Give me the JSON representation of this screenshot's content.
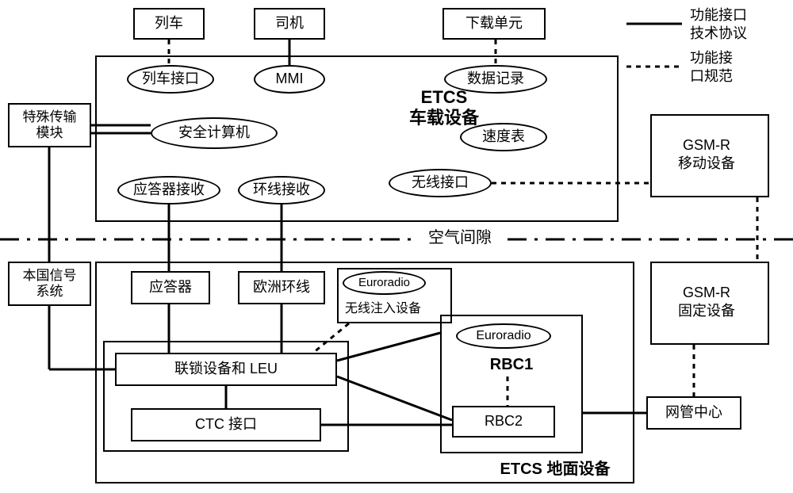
{
  "colors": {
    "stroke": "#000000",
    "bg": "#ffffff"
  },
  "top_boxes": {
    "train": "列车",
    "driver": "司机",
    "download": "下载单元"
  },
  "onboard": {
    "region_title": "ETCS\n车载设备",
    "train_if": "列车接口",
    "mmi": "MMI",
    "data_rec": "数据记录",
    "safety_comp": "安全计算机",
    "speedo": "速度表",
    "balise_rx": "应答器接收",
    "loop_rx": "环线接收",
    "radio_if": "无线接口"
  },
  "left": {
    "stm": "特殊传输\n模块",
    "national": "本国信号\n系统"
  },
  "right": {
    "gsmr_mobile": "GSM-R\n移动设备",
    "gsmr_fixed": "GSM-R\n固定设备"
  },
  "air_gap": "空气间隙",
  "ground": {
    "region_title": "ETCS 地面设备",
    "balise": "应答器",
    "euroloop": "欧洲环线",
    "euroradio_top": "Euroradio",
    "radio_infill": "无线注入设备",
    "interlock": "联锁设备和 LEU",
    "ctc": "CTC 接口",
    "euroradio_rbc": "Euroradio",
    "rbc1": "RBC1",
    "rbc2": "RBC2",
    "nmc": "网管中心"
  },
  "legend": {
    "line1": "功能接口\n技术协议",
    "line2": "功能接\n口规范"
  },
  "styles": {
    "solid_width": 3,
    "dash_width": 3,
    "dash_pattern": "6,6",
    "airgap_pattern": "24,10,4,10",
    "font_body": 18,
    "font_title": 22
  }
}
